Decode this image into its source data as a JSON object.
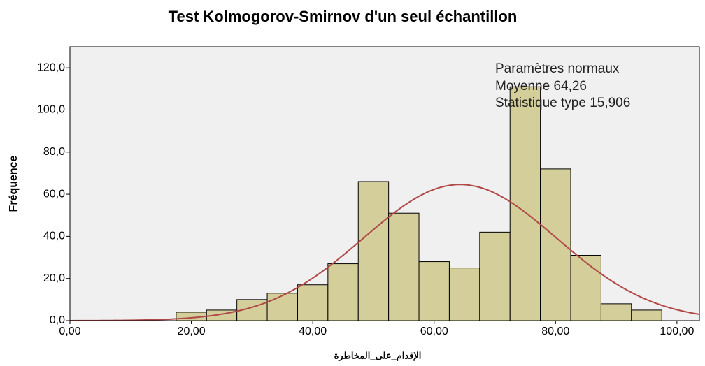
{
  "chart_data": {
    "type": "histogram",
    "title": "Test Kolmogorov-Smirnov d'un seul échantillon",
    "xlabel": "الإقدام_على_المخاطرة",
    "ylabel": "Fréquence",
    "bins": [
      17.5,
      22.5,
      27.5,
      32.5,
      37.5,
      42.5,
      47.5,
      52.5,
      57.5,
      62.5,
      67.5,
      72.5,
      77.5,
      82.5,
      87.5,
      92.5,
      97.5
    ],
    "values": [
      4,
      5,
      10,
      13,
      17,
      27,
      66,
      51,
      28,
      25,
      42,
      111,
      72,
      31,
      8,
      5
    ],
    "color": "#d4cf9a",
    "curve_color": "#b04848",
    "background": "#f0f0f0",
    "xlim": [
      0,
      103.7
    ],
    "ylim": [
      0,
      130
    ],
    "xticks": [
      {
        "value": 0,
        "label": "0,00"
      },
      {
        "value": 20,
        "label": "20,00"
      },
      {
        "value": 40,
        "label": "40,00"
      },
      {
        "value": 60,
        "label": "60,00"
      },
      {
        "value": 80,
        "label": "80,00"
      },
      {
        "value": 100,
        "label": "100,00"
      }
    ],
    "yticks": [
      {
        "value": 0,
        "label": "0,0"
      },
      {
        "value": 20,
        "label": "20,0"
      },
      {
        "value": 40,
        "label": "40,0"
      },
      {
        "value": 60,
        "label": "60,0"
      },
      {
        "value": 80,
        "label": "80,0"
      },
      {
        "value": 100,
        "label": "100,0"
      },
      {
        "value": 120,
        "label": "120,0"
      }
    ],
    "normal": {
      "title": "Paramètres normaux",
      "mean": {
        "name": "Moyenne",
        "value": 64.26,
        "label": "64,26"
      },
      "sd": {
        "name": "Statistique type",
        "value": 15.906,
        "label": "15,906"
      }
    }
  }
}
